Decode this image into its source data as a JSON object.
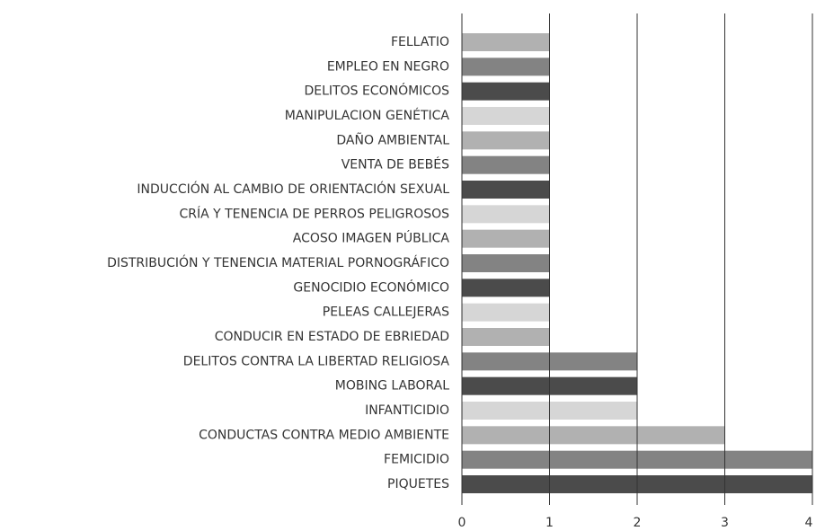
{
  "chart_data": {
    "type": "barh",
    "categories": [
      "FELLATIO",
      "EMPLEO EN NEGRO",
      "DELITOS ECONÓMICOS",
      "MANIPULACION GENÉTICA",
      "DAÑO AMBIENTAL",
      "VENTA DE BEBÉS",
      "INDUCCIÓN AL CAMBIO DE ORIENTACIÓN SEXUAL",
      "CRÍA Y TENENCIA DE PERROS PELIGROSOS",
      "ACOSO IMAGEN PÚBLICA",
      "DISTRIBUCIÓN Y TENENCIA MATERIAL PORNOGRÁFICO",
      "GENOCIDIO ECONÓMICO",
      "PELEAS CALLEJERAS",
      "CONDUCIR EN ESTADO DE EBRIEDAD",
      "DELITOS CONTRA LA LIBERTAD RELIGIOSA",
      "MOBING LABORAL",
      "INFANTICIDIO",
      "CONDUCTAS CONTRA MEDIO AMBIENTE",
      "FEMICIDIO",
      "PIQUETES"
    ],
    "values": [
      1,
      1,
      1,
      1,
      1,
      1,
      1,
      1,
      1,
      1,
      1,
      1,
      1,
      2,
      2,
      2,
      3,
      4,
      4
    ],
    "colors": [
      "#b1b1b1",
      "#838383",
      "#4b4b4b",
      "#d6d6d6"
    ],
    "xlim": [
      0,
      4
    ],
    "xticks": [
      0,
      1,
      2,
      3,
      4
    ],
    "grid": true
  }
}
